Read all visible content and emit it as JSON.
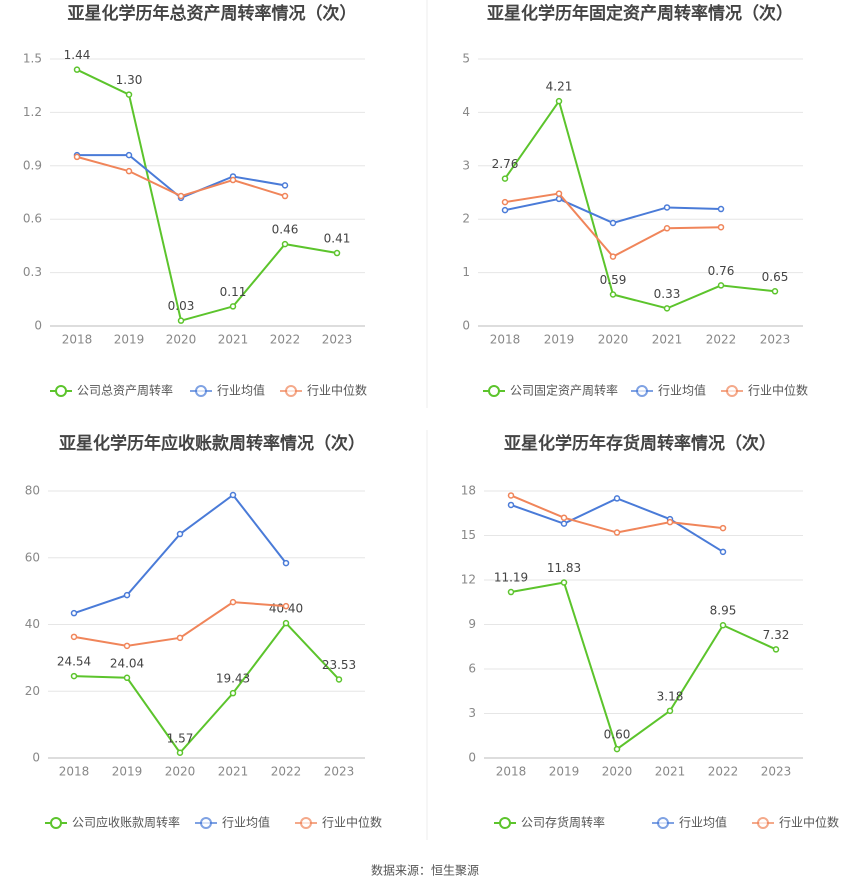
{
  "chart_data": [
    {
      "type": "line",
      "title": "亚星化学历年总资产周转率情况（次）",
      "categories": [
        "2018",
        "2019",
        "2020",
        "2021",
        "2022",
        "2023"
      ],
      "ylim": [
        0,
        1.5
      ],
      "yticks": [
        0,
        0.3,
        0.6,
        0.9,
        1.2,
        1.5
      ],
      "grid": true,
      "series": [
        {
          "name": "公司总资产周转率",
          "color": "#5cc42c",
          "values": [
            1.44,
            1.3,
            0.03,
            0.11,
            0.46,
            0.41
          ],
          "value_labels": [
            "1.44",
            "1.30",
            "0.03",
            "0.11",
            "0.46",
            "0.41"
          ]
        },
        {
          "name": "行业均值",
          "color": "#4a7bd8",
          "values": [
            0.96,
            0.96,
            0.72,
            0.84,
            0.79,
            null
          ]
        },
        {
          "name": "行业中位数",
          "color": "#f0855a",
          "values": [
            0.95,
            0.87,
            0.73,
            0.82,
            0.73,
            null
          ]
        }
      ]
    },
    {
      "type": "line",
      "title": "亚星化学历年固定资产周转率情况（次）",
      "categories": [
        "2018",
        "2019",
        "2020",
        "2021",
        "2022",
        "2023"
      ],
      "ylim": [
        0,
        5
      ],
      "yticks": [
        0,
        1,
        2,
        3,
        4,
        5
      ],
      "grid": true,
      "series": [
        {
          "name": "公司固定资产周转率",
          "color": "#5cc42c",
          "values": [
            2.76,
            4.21,
            0.59,
            0.33,
            0.76,
            0.65
          ]
        },
        {
          "name": "行业均值",
          "color": "#4a7bd8",
          "values": [
            2.17,
            2.38,
            1.93,
            2.22,
            2.19,
            null
          ]
        },
        {
          "name": "行业中位数",
          "color": "#f0855a",
          "values": [
            2.32,
            2.48,
            1.3,
            1.83,
            1.85,
            null
          ]
        }
      ]
    },
    {
      "type": "line",
      "title": "亚星化学历年应收账款周转率情况（次）",
      "categories": [
        "2018",
        "2019",
        "2020",
        "2021",
        "2022",
        "2023"
      ],
      "ylim": [
        0,
        80
      ],
      "yticks": [
        0,
        20,
        40,
        60,
        80
      ],
      "grid": true,
      "series": [
        {
          "name": "公司应收账款周转率",
          "color": "#5cc42c",
          "values": [
            24.54,
            24.04,
            1.57,
            19.43,
            40.4,
            23.53
          ],
          "value_labels": [
            "24.54",
            "24.04",
            "1.57",
            "19.43",
            "40.40",
            "23.53"
          ]
        },
        {
          "name": "行业均值",
          "color": "#4a7bd8",
          "values": [
            43.4,
            48.8,
            67.1,
            78.8,
            58.4,
            null
          ]
        },
        {
          "name": "行业中位数",
          "color": "#f0855a",
          "values": [
            36.3,
            33.6,
            36,
            46.7,
            45.5,
            null
          ]
        }
      ]
    },
    {
      "type": "line",
      "title": "亚星化学历年存货周转率情况（次）",
      "categories": [
        "2018",
        "2019",
        "2020",
        "2021",
        "2022",
        "2023"
      ],
      "ylim": [
        0,
        18
      ],
      "yticks": [
        0,
        3,
        6,
        9,
        12,
        15,
        18
      ],
      "grid": true,
      "series": [
        {
          "name": "公司存货周转率",
          "color": "#5cc42c",
          "values": [
            11.19,
            11.83,
            0.6,
            3.18,
            8.95,
            7.32
          ],
          "value_labels": [
            "11.19",
            "11.83",
            "0.60",
            "3.18",
            "8.95",
            "7.32"
          ]
        },
        {
          "name": "行业均值",
          "color": "#4a7bd8",
          "values": [
            17.06,
            15.8,
            17.5,
            16.1,
            13.9,
            null
          ]
        },
        {
          "name": "行业中位数",
          "color": "#f0855a",
          "values": [
            17.7,
            16.2,
            15.2,
            15.9,
            15.5,
            null
          ]
        }
      ]
    }
  ],
  "source": "数据来源：恒生聚源"
}
